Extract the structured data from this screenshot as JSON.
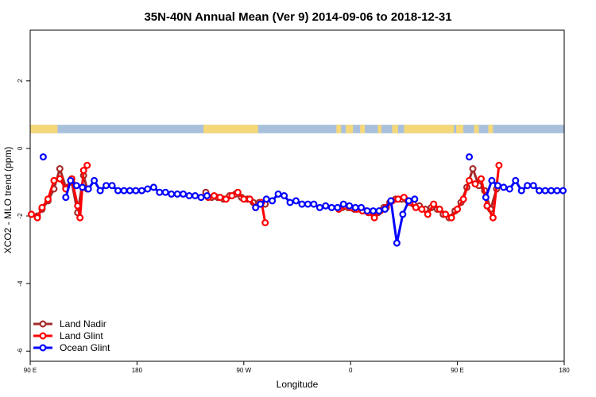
{
  "chart_data": {
    "type": "line",
    "title": "35N-40N Annual Mean (Ver 9)   2014-09-06 to 2018-12-31",
    "xlabel": "Longitude",
    "ylabel": "XCO2 - MLO trend (ppm)",
    "xlim": [
      90,
      540
    ],
    "ylim": [
      -6.3,
      3.5
    ],
    "x_ticks": [
      {
        "value": 90,
        "label": "90 E"
      },
      {
        "value": 180,
        "label": "180"
      },
      {
        "value": 270,
        "label": "90 W"
      },
      {
        "value": 360,
        "label": "0"
      },
      {
        "value": 450,
        "label": "90 E"
      },
      {
        "value": 540,
        "label": "180"
      }
    ],
    "y_ticks": [
      {
        "value": 2,
        "label": "2"
      },
      {
        "value": 0,
        "label": "0"
      },
      {
        "value": -2,
        "label": "-2"
      },
      {
        "value": -4,
        "label": "-4"
      },
      {
        "value": -6,
        "label": "-6"
      }
    ],
    "land_ocean_strip": {
      "y_range": [
        0.45,
        0.7
      ],
      "land_color": "#f5d87a",
      "ocean_color": "#a8c0dc",
      "land_segments": [
        [
          90,
          113
        ],
        [
          236,
          282
        ],
        [
          348,
          352
        ],
        [
          356,
          362
        ],
        [
          368,
          372
        ],
        [
          383,
          386
        ],
        [
          395,
          400
        ],
        [
          405,
          447
        ],
        [
          449,
          455
        ],
        [
          464,
          468
        ],
        [
          476,
          480
        ]
      ]
    },
    "legend": {
      "position": "bottom-left",
      "entries": [
        {
          "name": "Land Nadir",
          "color": "#a52a2a"
        },
        {
          "name": "Land Glint",
          "color": "#ff0000"
        },
        {
          "name": "Ocean Glint",
          "color": "#0000ff"
        }
      ]
    },
    "series": [
      {
        "name": "Land Nadir",
        "color": "#a52a2a",
        "segments": [
          {
            "x": [
              91,
              96,
              100,
              105,
              110,
              115,
              120,
              125,
              130,
              135,
              138
            ],
            "y": [
              -1.95,
              -2.0,
              -1.8,
              -1.55,
              -1.2,
              -0.6,
              -1.15,
              -1.0,
              -1.9,
              -0.8,
              -1.2
            ]
          },
          {
            "x": [
              238,
              243,
              248,
              253,
              258,
              263,
              268,
              273,
              278,
              283,
              285,
              288
            ],
            "y": [
              -1.3,
              -1.45,
              -1.45,
              -1.5,
              -1.4,
              -1.35,
              -1.45,
              -1.5,
              -1.6,
              -1.6,
              -1.65,
              -1.65
            ]
          },
          {
            "x": [
              353,
              358,
              363,
              368,
              373,
              378,
              383,
              388,
              393,
              398,
              403,
              408,
              413,
              418,
              423,
              428,
              433,
              438,
              443,
              448,
              453,
              458,
              463,
              468,
              473,
              478,
              483
            ],
            "y": [
              -1.75,
              -1.75,
              -1.8,
              -1.8,
              -1.85,
              -1.9,
              -1.9,
              -1.75,
              -1.6,
              -1.5,
              -1.5,
              -1.55,
              -1.65,
              -1.7,
              -1.8,
              -1.75,
              -1.8,
              -1.95,
              -2.05,
              -1.85,
              -1.6,
              -1.15,
              -0.6,
              -1.1,
              -1.25,
              -1.8,
              -1.2
            ]
          }
        ]
      },
      {
        "name": "Land Glint",
        "color": "#ff0000",
        "segments": [
          {
            "x": [
              91,
              96,
              100,
              105,
              110,
              115,
              120,
              125,
              130,
              132,
              135,
              138
            ],
            "y": [
              -1.95,
              -2.05,
              -1.75,
              -1.5,
              -0.95,
              -0.9,
              -1.2,
              -0.9,
              -1.7,
              -2.05,
              -0.65,
              -0.5
            ]
          },
          {
            "x": [
              240,
              245,
              250,
              255,
              260,
              265,
              270,
              275,
              280,
              285,
              288
            ],
            "y": [
              -1.45,
              -1.4,
              -1.45,
              -1.5,
              -1.4,
              -1.3,
              -1.5,
              -1.5,
              -1.75,
              -1.6,
              -2.2
            ]
          },
          {
            "x": [
              350,
              355,
              360,
              365,
              370,
              375,
              380,
              385,
              390,
              395,
              400,
              405,
              410,
              415,
              420,
              425,
              430,
              435,
              440,
              445,
              450,
              455,
              460,
              465,
              470,
              475,
              480,
              485
            ],
            "y": [
              -1.8,
              -1.7,
              -1.75,
              -1.8,
              -1.85,
              -1.9,
              -2.05,
              -1.85,
              -1.75,
              -1.55,
              -1.5,
              -1.45,
              -1.6,
              -1.75,
              -1.8,
              -1.95,
              -1.65,
              -1.8,
              -1.95,
              -2.05,
              -1.8,
              -1.5,
              -0.95,
              -1.05,
              -0.9,
              -1.7,
              -2.05,
              -0.5
            ]
          }
        ]
      },
      {
        "name": "Ocean Glint",
        "color": "#0000ff",
        "segments": [
          {
            "x": [
              101
            ],
            "y": [
              -0.25
            ]
          },
          {
            "x": [
              120,
              124,
              129,
              134,
              139,
              144,
              149,
              154,
              159,
              164,
              169,
              174,
              179,
              184,
              189,
              194,
              199,
              204,
              209,
              214,
              219,
              224,
              229,
              234,
              239
            ],
            "y": [
              -1.45,
              -0.95,
              -1.1,
              -1.15,
              -1.2,
              -0.95,
              -1.25,
              -1.1,
              -1.1,
              -1.25,
              -1.25,
              -1.25,
              -1.25,
              -1.25,
              -1.2,
              -1.15,
              -1.3,
              -1.3,
              -1.35,
              -1.35,
              -1.35,
              -1.4,
              -1.4,
              -1.45,
              -1.4
            ]
          },
          {
            "x": [
              280,
              284,
              289,
              294,
              299,
              304,
              309,
              314,
              319,
              324,
              329,
              334,
              339,
              344,
              349,
              354,
              359,
              364,
              369,
              374,
              379,
              384,
              389,
              394,
              399,
              404,
              409,
              414
            ],
            "y": [
              -1.75,
              -1.65,
              -1.5,
              -1.55,
              -1.35,
              -1.4,
              -1.6,
              -1.55,
              -1.65,
              -1.65,
              -1.65,
              -1.75,
              -1.7,
              -1.75,
              -1.75,
              -1.65,
              -1.7,
              -1.75,
              -1.75,
              -1.85,
              -1.85,
              -1.85,
              -1.8,
              -1.55,
              -2.8,
              -1.95,
              -1.55,
              -1.5
            ]
          },
          {
            "x": [
              460
            ],
            "y": [
              -0.25
            ]
          },
          {
            "x": [
              474,
              479,
              484,
              489,
              494,
              499,
              504,
              509,
              514,
              519,
              524,
              529,
              534,
              539
            ],
            "y": [
              -1.45,
              -0.95,
              -1.1,
              -1.15,
              -1.2,
              -0.95,
              -1.25,
              -1.1,
              -1.1,
              -1.25,
              -1.25,
              -1.25,
              -1.25,
              -1.25
            ]
          }
        ]
      }
    ]
  }
}
